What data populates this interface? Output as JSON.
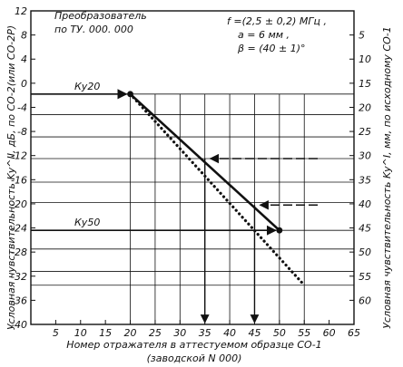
{
  "chart_data": {
    "type": "line",
    "notes": {
      "converter": [
        "Преобразователь",
        "по ТУ. 000. 000"
      ],
      "params": [
        "f =(2,5 ± 0,2) МГц ,",
        "a = 6 мм ,",
        "β = (40 ± 1)°"
      ]
    },
    "left_axis": {
      "label": "Условная чувствительность Kу^II, дБ, по СО-2(или СО-2Р)",
      "min": -40,
      "max": 12,
      "ticks": [
        "12",
        "8",
        "4",
        "0",
        "-4",
        "-8",
        "-12",
        "-16",
        "-20",
        "-24",
        "-28",
        "-32",
        "-36",
        "-40"
      ]
    },
    "right_axis": {
      "label": "Условная чувствительность Kу^I, мм, по исходному СО-1",
      "min": 0,
      "max": 65,
      "ticks": [
        "5",
        "10",
        "15",
        "20",
        "25",
        "30",
        "35",
        "40",
        "45",
        "50",
        "55",
        "60"
      ]
    },
    "x_axis": {
      "label_lines": [
        "Номер отражателя в аттестуемом образце СО-1",
        "(заводской N 000)"
      ],
      "min": 0,
      "max": 65,
      "ticks": [
        "5",
        "10",
        "15",
        "20",
        "25",
        "30",
        "35",
        "40",
        "45",
        "50",
        "55",
        "60",
        "65"
      ]
    },
    "series": [
      {
        "style": "solid",
        "points": [
          [
            20,
            -1.8
          ],
          [
            50,
            -24.4
          ]
        ]
      },
      {
        "style": "dotted",
        "points": [
          [
            20,
            -1.8
          ],
          [
            55,
            -33.5
          ]
        ]
      }
    ],
    "guides": {
      "vertical": [
        20,
        25,
        30,
        35,
        40,
        45,
        50,
        55
      ],
      "horizontal": [
        -1.8,
        -5.2,
        -8.9,
        -12.5,
        -16.4,
        -19.8,
        -24.4,
        -27.5,
        -31.2,
        -33.5
      ]
    },
    "markers": [
      {
        "label": "Ку20",
        "x": 20,
        "y": -1.8
      },
      {
        "label": "Ку50",
        "x": 50,
        "y": -24.4
      }
    ],
    "examples": [
      {
        "y": -12.5,
        "x_read": 35
      },
      {
        "y": -20.2,
        "x_read": 45
      }
    ]
  }
}
